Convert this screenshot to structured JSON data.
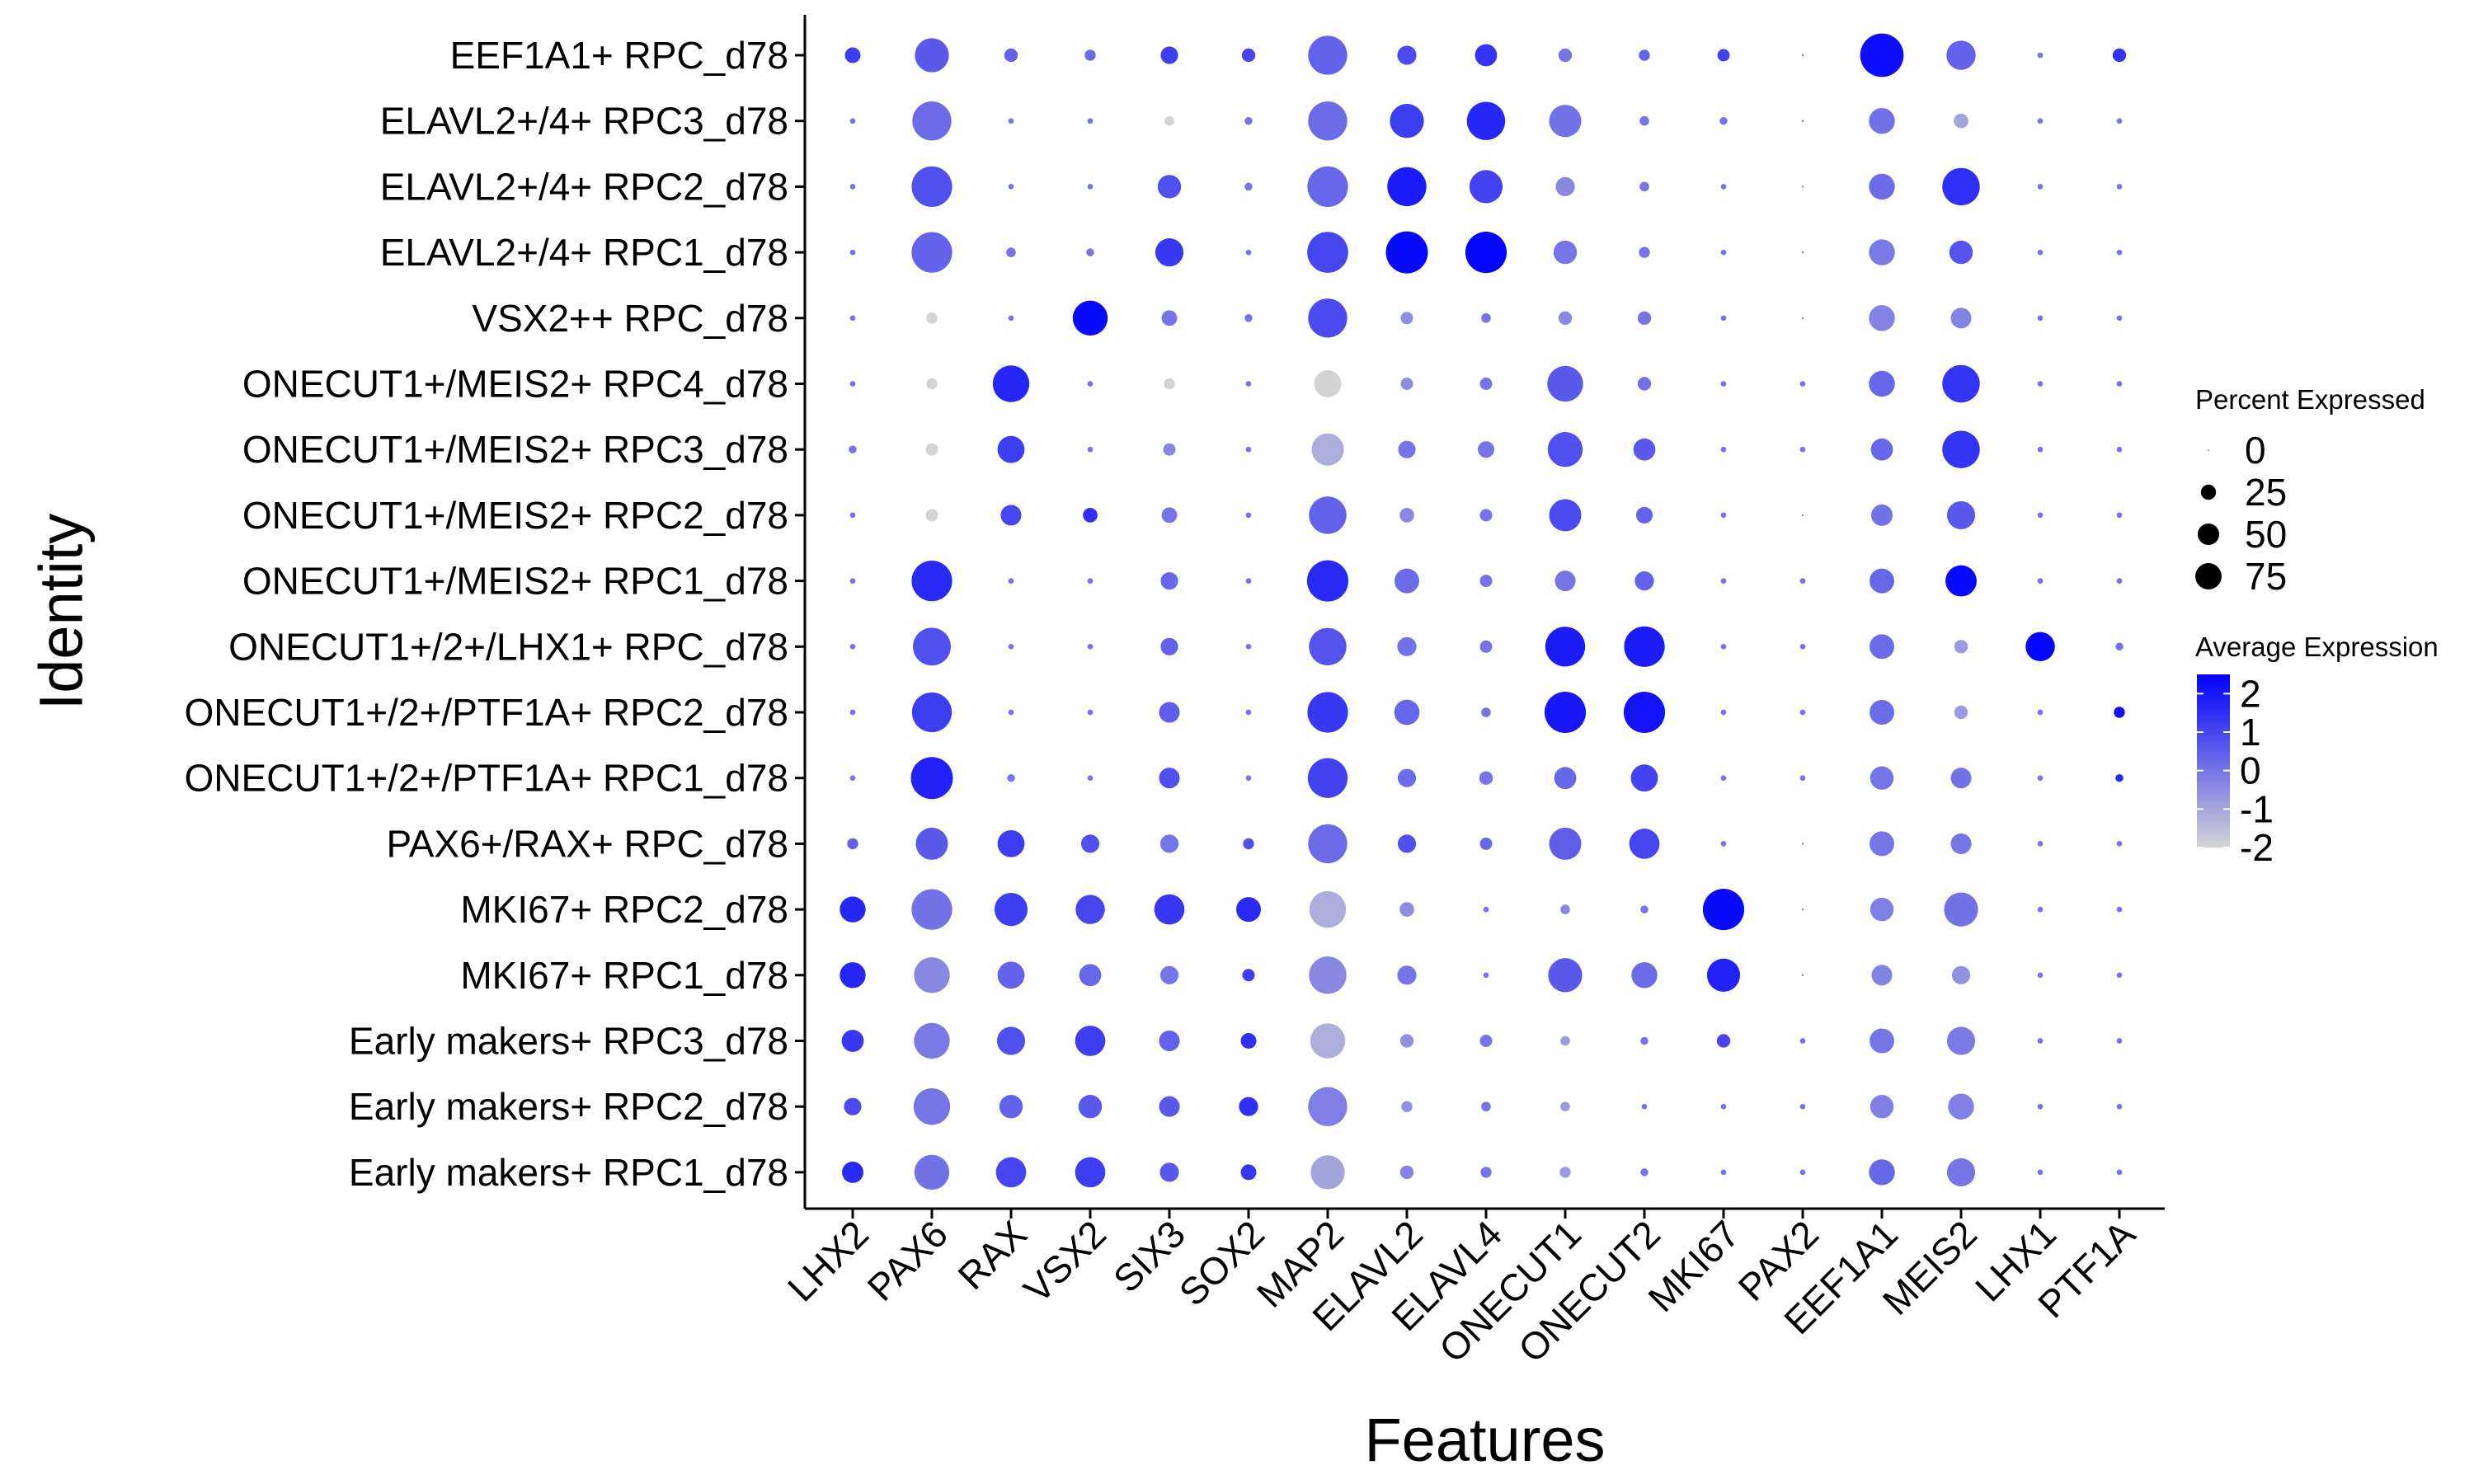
{
  "chart_data": {
    "type": "dot",
    "title": "",
    "xlabel": "Features",
    "ylabel": "Identity",
    "grid": false,
    "legend_position": "right",
    "features": [
      "LHX2",
      "PAX6",
      "RAX",
      "VSX2",
      "SIX3",
      "SOX2",
      "MAP2",
      "ELAVL2",
      "ELAVL4",
      "ONECUT1",
      "ONECUT2",
      "MKI67",
      "PAX2",
      "EEF1A1",
      "MEIS2",
      "LHX1",
      "PTF1A"
    ],
    "identities": [
      "EEF1A1+ RPC_d78",
      "ELAVL2+/4+ RPC3_d78",
      "ELAVL2+/4+ RPC2_d78",
      "ELAVL2+/4+ RPC1_d78",
      "VSX2++ RPC_d78",
      "ONECUT1+/MEIS2+ RPC4_d78",
      "ONECUT1+/MEIS2+ RPC3_d78",
      "ONECUT1+/MEIS2+ RPC2_d78",
      "ONECUT1+/MEIS2+ RPC1_d78",
      "ONECUT1+/2+/LHX1+ RPC_d78",
      "ONECUT1+/2+/PTF1A+ RPC2_d78",
      "ONECUT1+/2+/PTF1A+ RPC1_d78",
      "PAX6+/RAX+ RPC_d78",
      "MKI67+ RPC2_d78",
      "MKI67+ RPC1_d78",
      "Early makers+ RPC3_d78",
      "Early makers+ RPC2_d78",
      "Early makers+ RPC1_d78"
    ],
    "percent_expressed": [
      [
        8,
        38,
        6,
        4,
        10,
        6,
        50,
        12,
        16,
        6,
        4,
        5,
        0,
        62,
        28,
        1,
        6
      ],
      [
        1,
        50,
        1,
        1,
        3,
        2,
        50,
        38,
        48,
        34,
        3,
        2,
        0,
        22,
        7,
        1,
        1
      ],
      [
        1,
        54,
        1,
        1,
        18,
        2,
        54,
        50,
        36,
        12,
        3,
        1,
        0,
        22,
        46,
        1,
        1
      ],
      [
        1,
        54,
        3,
        2,
        26,
        1,
        55,
        58,
        56,
        18,
        4,
        1,
        0,
        22,
        18,
        1,
        1
      ],
      [
        1,
        4,
        1,
        40,
        8,
        2,
        50,
        5,
        3,
        6,
        6,
        1,
        0,
        22,
        14,
        1,
        1
      ],
      [
        1,
        4,
        44,
        1,
        4,
        1,
        24,
        5,
        5,
        42,
        6,
        1,
        1,
        22,
        46,
        1,
        1
      ],
      [
        2,
        5,
        24,
        1,
        5,
        1,
        34,
        10,
        9,
        40,
        16,
        1,
        1,
        16,
        46,
        1,
        1
      ],
      [
        1,
        5,
        14,
        7,
        8,
        1,
        46,
        7,
        5,
        34,
        9,
        1,
        0,
        15,
        26,
        1,
        1
      ],
      [
        1,
        54,
        1,
        1,
        10,
        1,
        56,
        20,
        5,
        14,
        12,
        1,
        1,
        20,
        32,
        1,
        1
      ],
      [
        1,
        47,
        1,
        1,
        10,
        1,
        46,
        12,
        5,
        52,
        54,
        1,
        1,
        20,
        6,
        28,
        2
      ],
      [
        1,
        52,
        1,
        1,
        14,
        1,
        54,
        21,
        3,
        56,
        56,
        1,
        1,
        20,
        6,
        1,
        4
      ],
      [
        1,
        58,
        2,
        1,
        14,
        1,
        52,
        11,
        6,
        16,
        24,
        1,
        1,
        18,
        14,
        1,
        2
      ],
      [
        4,
        34,
        24,
        11,
        11,
        4,
        50,
        11,
        5,
        34,
        30,
        1,
        0,
        20,
        14,
        1,
        1
      ],
      [
        22,
        54,
        36,
        28,
        30,
        20,
        44,
        7,
        1,
        3,
        2,
        56,
        0,
        18,
        38,
        1,
        1
      ],
      [
        22,
        42,
        24,
        16,
        11,
        5,
        46,
        12,
        1,
        38,
        22,
        36,
        0,
        14,
        11,
        1,
        1
      ],
      [
        16,
        42,
        26,
        30,
        14,
        8,
        40,
        6,
        5,
        3,
        2,
        6,
        1,
        20,
        26,
        1,
        1
      ],
      [
        10,
        44,
        18,
        18,
        14,
        12,
        50,
        4,
        3,
        3,
        1,
        1,
        1,
        18,
        22,
        1,
        1
      ],
      [
        15,
        40,
        30,
        30,
        12,
        8,
        38,
        6,
        4,
        4,
        2,
        1,
        1,
        22,
        26,
        1,
        1
      ]
    ],
    "average_expression": [
      [
        1.2,
        0.6,
        0.4,
        0.2,
        1.2,
        1.0,
        0.4,
        0.9,
        1.4,
        0.0,
        0.4,
        1.1,
        0,
        2.2,
        0.4,
        0,
        1.4
      ],
      [
        0,
        0.2,
        0,
        0,
        -2,
        0,
        0.2,
        1.2,
        1.7,
        0.1,
        0,
        0,
        0,
        0.1,
        -1,
        0,
        0
      ],
      [
        0,
        0.8,
        0,
        0,
        0.8,
        0,
        0.3,
        1.9,
        1.1,
        -0.4,
        0,
        0,
        0,
        0.2,
        1.5,
        0,
        0
      ],
      [
        0,
        0.4,
        0,
        0,
        1.3,
        0,
        1.0,
        2.3,
        2.4,
        0,
        0,
        0,
        0,
        -0.1,
        0.7,
        0,
        0
      ],
      [
        0,
        -2,
        0,
        2.3,
        0,
        0,
        0.9,
        -0.5,
        0,
        -0.4,
        0,
        0,
        0,
        -0.3,
        -0.3,
        0,
        0
      ],
      [
        0,
        -2,
        1.7,
        0,
        -2,
        0,
        -2,
        -0.5,
        0,
        0.6,
        0.1,
        0,
        0,
        0.3,
        1.4,
        0,
        0
      ],
      [
        0,
        -2,
        1.2,
        0,
        -0.4,
        0,
        -1.2,
        0,
        0,
        0.8,
        0.6,
        0,
        0,
        0.3,
        1.4,
        0,
        0
      ],
      [
        0,
        -2,
        1.0,
        1.5,
        0,
        0,
        0.4,
        -0.4,
        0,
        0.9,
        0.4,
        0,
        0,
        0.1,
        0.6,
        0,
        0
      ],
      [
        0,
        1.6,
        0,
        0,
        0.3,
        0,
        1.6,
        0.2,
        0,
        0,
        0.4,
        0,
        0,
        0.3,
        2.3,
        0,
        0
      ],
      [
        0,
        0.8,
        0,
        0,
        0.4,
        0,
        0.7,
        0.1,
        0,
        1.9,
        1.9,
        0,
        0,
        0.2,
        -0.8,
        2.4,
        0
      ],
      [
        0,
        1.2,
        0,
        0,
        0.5,
        0,
        1.3,
        0.3,
        0,
        2.0,
        2.1,
        0,
        0,
        0.2,
        -0.8,
        0,
        2.2
      ],
      [
        0,
        1.8,
        0,
        0,
        0.8,
        0,
        1.1,
        0.2,
        0,
        0.3,
        1.1,
        0,
        0,
        0,
        0.1,
        0,
        1.6
      ],
      [
        0.4,
        0.6,
        1.2,
        0.8,
        0,
        0.8,
        0.2,
        0.8,
        0.3,
        0.5,
        1.0,
        0,
        0,
        0,
        0,
        0,
        0
      ],
      [
        1.7,
        0.1,
        1.2,
        1.0,
        1.3,
        1.6,
        -1.2,
        -0.5,
        0,
        -0.4,
        0,
        2.3,
        0,
        -0.2,
        0.1,
        0,
        0
      ],
      [
        1.7,
        -0.4,
        0.4,
        0.3,
        0,
        1.2,
        -0.4,
        0,
        0,
        0.6,
        0.2,
        1.8,
        0,
        -0.3,
        -0.6,
        0,
        0
      ],
      [
        1.3,
        -0.1,
        0.8,
        1.2,
        0.4,
        1.5,
        -1.2,
        -0.6,
        0,
        -0.8,
        0,
        1.0,
        0,
        0,
        -0.1,
        0,
        0
      ],
      [
        0.9,
        0,
        0.4,
        0.6,
        0.6,
        1.5,
        -0.2,
        -0.6,
        0,
        -0.8,
        0,
        0,
        0,
        -0.2,
        -0.2,
        0,
        0
      ],
      [
        1.6,
        0.1,
        1.0,
        1.2,
        0.6,
        1.3,
        -1.0,
        -0.3,
        0,
        -0.8,
        0,
        0,
        0,
        0.3,
        0,
        0,
        0
      ]
    ],
    "size_legend": {
      "title": "Percent Expressed",
      "breaks": [
        0,
        25,
        50,
        75
      ],
      "labels": [
        "0",
        "25",
        "50",
        "75"
      ]
    },
    "color_legend": {
      "title": "Average Expression",
      "breaks": [
        2,
        1,
        0,
        -1,
        -2
      ],
      "labels": [
        "2",
        "1",
        "0",
        "-1",
        "-2"
      ],
      "low_color": "#d3d3d3",
      "high_color": "#0000ff"
    }
  }
}
